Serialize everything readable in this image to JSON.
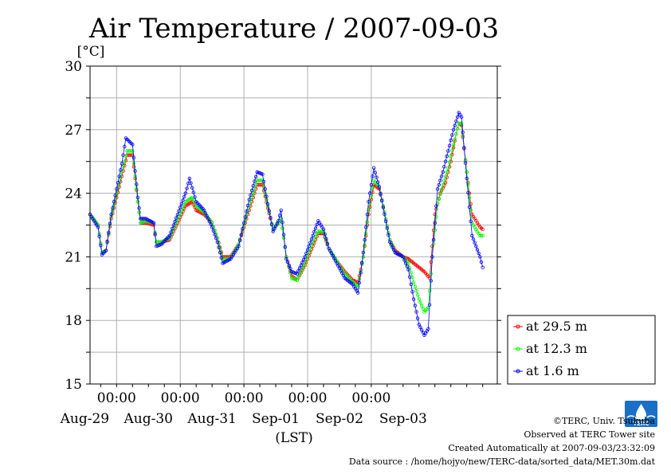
{
  "chart_data": {
    "type": "line",
    "title": "Air Temperature / 2007-09-03",
    "ylabel": "[°C]",
    "xlabel": "(LST)",
    "ylim": [
      15,
      30
    ],
    "yticks": [
      15,
      18,
      21,
      24,
      27,
      30
    ],
    "x_range_days": [
      "2007-08-28 14:00",
      "2007-09-03 23:30"
    ],
    "x_time_ticks": [
      "00:00",
      "00:00",
      "00:00",
      "00:00",
      "00:00"
    ],
    "x_date_labels": [
      "Aug-29",
      "Aug-30",
      "Aug-31",
      "Sep-01",
      "Sep-02",
      "Sep-03"
    ],
    "grid": true,
    "legend_position": "right",
    "marker": "open-circle",
    "series": [
      {
        "name": "at 29.5 m",
        "color": "#ff0000",
        "points": [
          [
            "2007-08-28 14:00",
            23.0
          ],
          [
            "2007-08-28 17:00",
            22.5
          ],
          [
            "2007-08-28 18:30",
            21.2
          ],
          [
            "2007-08-28 20:00",
            21.3
          ],
          [
            "2007-08-28 22:00",
            22.8
          ],
          [
            "2007-08-29 02:00",
            24.8
          ],
          [
            "2007-08-29 04:00",
            25.8
          ],
          [
            "2007-08-29 06:00",
            25.8
          ],
          [
            "2007-08-29 08:00",
            23.6
          ],
          [
            "2007-08-29 09:00",
            22.6
          ],
          [
            "2007-08-29 11:00",
            22.6
          ],
          [
            "2007-08-29 14:00",
            22.5
          ],
          [
            "2007-08-29 15:00",
            21.7
          ],
          [
            "2007-08-29 17:00",
            21.7
          ],
          [
            "2007-08-29 20:00",
            21.8
          ],
          [
            "2007-08-30 02:00",
            23.4
          ],
          [
            "2007-08-30 04:30",
            23.6
          ],
          [
            "2007-08-30 06:00",
            23.2
          ],
          [
            "2007-08-30 09:00",
            23.0
          ],
          [
            "2007-08-30 12:00",
            22.6
          ],
          [
            "2007-08-30 14:00",
            21.9
          ],
          [
            "2007-08-30 16:00",
            21.0
          ],
          [
            "2007-08-30 19:00",
            21.0
          ],
          [
            "2007-08-30 22:00",
            21.6
          ],
          [
            "2007-08-31 02:00",
            23.2
          ],
          [
            "2007-08-31 05:00",
            24.4
          ],
          [
            "2007-08-31 07:00",
            24.4
          ],
          [
            "2007-08-31 09:00",
            23.3
          ],
          [
            "2007-08-31 11:00",
            22.3
          ],
          [
            "2007-08-31 13:00",
            22.6
          ],
          [
            "2007-08-31 14:00",
            22.8
          ],
          [
            "2007-08-31 16:00",
            21.0
          ],
          [
            "2007-08-31 18:00",
            20.1
          ],
          [
            "2007-08-31 20:00",
            19.9
          ],
          [
            "2007-08-31 23:00",
            20.6
          ],
          [
            "2007-09-01 02:00",
            21.5
          ],
          [
            "2007-09-01 04:00",
            22.1
          ],
          [
            "2007-09-01 06:00",
            22.1
          ],
          [
            "2007-09-01 08:00",
            21.4
          ],
          [
            "2007-09-01 11:00",
            20.8
          ],
          [
            "2007-09-01 14:00",
            20.3
          ],
          [
            "2007-09-01 17:00",
            19.9
          ],
          [
            "2007-09-01 19:00",
            19.8
          ],
          [
            "2007-09-01 21:00",
            21.0
          ],
          [
            "2007-09-01 23:00",
            23.0
          ],
          [
            "2007-09-02 01:00",
            24.4
          ],
          [
            "2007-09-02 03:00",
            24.2
          ],
          [
            "2007-09-02 05:00",
            23.1
          ],
          [
            "2007-09-02 07:00",
            21.8
          ],
          [
            "2007-09-02 09:00",
            21.3
          ],
          [
            "2007-09-02 12:00",
            21.0
          ],
          [
            "2007-09-02 14:00",
            20.9
          ],
          [
            "2007-09-02 17:00",
            20.6
          ],
          [
            "2007-09-02 20:00",
            20.3
          ],
          [
            "2007-09-02 22:00",
            20.0
          ],
          [
            "2007-09-03 00:00",
            23.0
          ],
          [
            "2007-09-03 02:00",
            24.0
          ],
          [
            "2007-09-03 04:00",
            24.5
          ],
          [
            "2007-09-03 06:00",
            25.5
          ],
          [
            "2007-09-03 08:00",
            26.8
          ],
          [
            "2007-09-03 09:00",
            27.3
          ],
          [
            "2007-09-03 10:00",
            27.2
          ],
          [
            "2007-09-03 12:00",
            25.0
          ],
          [
            "2007-09-03 14:00",
            23.0
          ],
          [
            "2007-09-03 17:00",
            22.4
          ],
          [
            "2007-09-03 18:00",
            22.3
          ]
        ]
      },
      {
        "name": "at 12.3 m",
        "color": "#00ff00",
        "points": [
          [
            "2007-08-28 14:00",
            23.0
          ],
          [
            "2007-08-28 17:00",
            22.5
          ],
          [
            "2007-08-28 18:30",
            21.2
          ],
          [
            "2007-08-28 20:00",
            21.3
          ],
          [
            "2007-08-28 22:00",
            22.9
          ],
          [
            "2007-08-29 02:00",
            25.0
          ],
          [
            "2007-08-29 04:00",
            26.0
          ],
          [
            "2007-08-29 06:00",
            26.0
          ],
          [
            "2007-08-29 08:00",
            23.6
          ],
          [
            "2007-08-29 09:00",
            22.6
          ],
          [
            "2007-08-29 11:00",
            22.7
          ],
          [
            "2007-08-29 14:00",
            22.6
          ],
          [
            "2007-08-29 15:00",
            21.7
          ],
          [
            "2007-08-29 17:00",
            21.7
          ],
          [
            "2007-08-29 20:00",
            21.9
          ],
          [
            "2007-08-30 02:00",
            23.6
          ],
          [
            "2007-08-30 04:30",
            23.8
          ],
          [
            "2007-08-30 06:00",
            23.4
          ],
          [
            "2007-08-30 09:00",
            23.1
          ],
          [
            "2007-08-30 12:00",
            22.6
          ],
          [
            "2007-08-30 14:00",
            21.9
          ],
          [
            "2007-08-30 16:00",
            20.9
          ],
          [
            "2007-08-30 19:00",
            20.9
          ],
          [
            "2007-08-30 22:00",
            21.6
          ],
          [
            "2007-08-31 02:00",
            23.4
          ],
          [
            "2007-08-31 05:00",
            24.6
          ],
          [
            "2007-08-31 07:00",
            24.6
          ],
          [
            "2007-08-31 09:00",
            23.4
          ],
          [
            "2007-08-31 11:00",
            22.3
          ],
          [
            "2007-08-31 13:00",
            22.6
          ],
          [
            "2007-08-31 14:00",
            22.8
          ],
          [
            "2007-08-31 16:00",
            21.0
          ],
          [
            "2007-08-31 18:00",
            20.0
          ],
          [
            "2007-08-31 20:00",
            19.9
          ],
          [
            "2007-08-31 23:00",
            20.7
          ],
          [
            "2007-09-01 02:00",
            21.7
          ],
          [
            "2007-09-01 04:00",
            22.2
          ],
          [
            "2007-09-01 06:00",
            22.2
          ],
          [
            "2007-09-01 08:00",
            21.4
          ],
          [
            "2007-09-01 11:00",
            20.8
          ],
          [
            "2007-09-01 14:00",
            20.2
          ],
          [
            "2007-09-01 17:00",
            19.8
          ],
          [
            "2007-09-01 19:00",
            19.6
          ],
          [
            "2007-09-01 21:00",
            21.0
          ],
          [
            "2007-09-01 23:00",
            23.2
          ],
          [
            "2007-09-02 01:00",
            24.6
          ],
          [
            "2007-09-02 03:00",
            24.3
          ],
          [
            "2007-09-02 05:00",
            23.1
          ],
          [
            "2007-09-02 07:00",
            21.8
          ],
          [
            "2007-09-02 09:00",
            21.2
          ],
          [
            "2007-09-02 12:00",
            21.0
          ],
          [
            "2007-09-02 14:00",
            20.7
          ],
          [
            "2007-09-02 16:00",
            19.8
          ],
          [
            "2007-09-02 18:00",
            19.0
          ],
          [
            "2007-09-02 20:00",
            18.4
          ],
          [
            "2007-09-02 21:30",
            18.6
          ],
          [
            "2007-09-02 23:00",
            21.0
          ],
          [
            "2007-09-03 01:00",
            23.5
          ],
          [
            "2007-09-03 03:00",
            24.4
          ],
          [
            "2007-09-03 05:00",
            25.2
          ],
          [
            "2007-09-03 07:00",
            26.3
          ],
          [
            "2007-09-03 09:00",
            27.3
          ],
          [
            "2007-09-03 10:00",
            27.3
          ],
          [
            "2007-09-03 12:00",
            25.0
          ],
          [
            "2007-09-03 14:00",
            22.6
          ],
          [
            "2007-09-03 17:00",
            22.0
          ],
          [
            "2007-09-03 18:00",
            22.0
          ]
        ]
      },
      {
        "name": "at 1.6 m",
        "color": "#0000ff",
        "points": [
          [
            "2007-08-28 14:00",
            23.0
          ],
          [
            "2007-08-28 17:00",
            22.4
          ],
          [
            "2007-08-28 18:30",
            21.1
          ],
          [
            "2007-08-28 20:00",
            21.3
          ],
          [
            "2007-08-28 22:00",
            23.0
          ],
          [
            "2007-08-29 02:00",
            25.4
          ],
          [
            "2007-08-29 03:30",
            26.6
          ],
          [
            "2007-08-29 06:00",
            26.3
          ],
          [
            "2007-08-29 08:00",
            23.8
          ],
          [
            "2007-08-29 09:00",
            22.8
          ],
          [
            "2007-08-29 11:00",
            22.8
          ],
          [
            "2007-08-29 14:00",
            22.6
          ],
          [
            "2007-08-29 15:00",
            21.5
          ],
          [
            "2007-08-29 17:00",
            21.6
          ],
          [
            "2007-08-29 20:00",
            22.0
          ],
          [
            "2007-08-30 02:00",
            24.0
          ],
          [
            "2007-08-30 03:30",
            24.7
          ],
          [
            "2007-08-30 06:00",
            23.6
          ],
          [
            "2007-08-30 09:00",
            23.2
          ],
          [
            "2007-08-30 12:00",
            22.4
          ],
          [
            "2007-08-30 14:00",
            21.7
          ],
          [
            "2007-08-30 16:00",
            20.7
          ],
          [
            "2007-08-30 19:00",
            20.9
          ],
          [
            "2007-08-30 22:00",
            21.5
          ],
          [
            "2007-08-31 02:00",
            23.7
          ],
          [
            "2007-08-31 05:00",
            25.0
          ],
          [
            "2007-08-31 07:00",
            24.9
          ],
          [
            "2007-08-31 09:00",
            23.5
          ],
          [
            "2007-08-31 11:00",
            22.2
          ],
          [
            "2007-08-31 13:00",
            22.7
          ],
          [
            "2007-08-31 14:00",
            23.2
          ],
          [
            "2007-08-31 16:00",
            20.9
          ],
          [
            "2007-08-31 18:00",
            20.3
          ],
          [
            "2007-08-31 20:00",
            20.2
          ],
          [
            "2007-08-31 23:00",
            21.0
          ],
          [
            "2007-09-01 02:00",
            22.0
          ],
          [
            "2007-09-01 04:00",
            22.7
          ],
          [
            "2007-09-01 06:00",
            22.3
          ],
          [
            "2007-09-01 08:00",
            21.4
          ],
          [
            "2007-09-01 11:00",
            20.7
          ],
          [
            "2007-09-01 14:00",
            20.0
          ],
          [
            "2007-09-01 17:00",
            19.7
          ],
          [
            "2007-09-01 19:00",
            19.3
          ],
          [
            "2007-09-01 21:00",
            21.2
          ],
          [
            "2007-09-01 23:00",
            23.6
          ],
          [
            "2007-09-02 01:00",
            25.2
          ],
          [
            "2007-09-02 03:00",
            24.3
          ],
          [
            "2007-09-02 05:00",
            23.0
          ],
          [
            "2007-09-02 07:00",
            21.7
          ],
          [
            "2007-09-02 09:00",
            21.2
          ],
          [
            "2007-09-02 12:00",
            21.0
          ],
          [
            "2007-09-02 14:00",
            20.4
          ],
          [
            "2007-09-02 16:00",
            19.0
          ],
          [
            "2007-09-02 18:00",
            17.8
          ],
          [
            "2007-09-02 20:00",
            17.3
          ],
          [
            "2007-09-02 21:30",
            17.6
          ],
          [
            "2007-09-02 23:00",
            21.0
          ],
          [
            "2007-09-03 01:00",
            24.2
          ],
          [
            "2007-09-03 03:00",
            25.0
          ],
          [
            "2007-09-03 05:00",
            26.0
          ],
          [
            "2007-09-03 07:00",
            27.0
          ],
          [
            "2007-09-03 09:00",
            27.8
          ],
          [
            "2007-09-03 10:00",
            27.6
          ],
          [
            "2007-09-03 12:00",
            24.7
          ],
          [
            "2007-09-03 14:00",
            22.0
          ],
          [
            "2007-09-03 17:00",
            21.0
          ],
          [
            "2007-09-03 18:00",
            20.5
          ]
        ]
      }
    ]
  },
  "footer": {
    "copyright": "©TERC, Univ. Tsukuba",
    "site": "Observed at TERC Tower site",
    "created": "Created Automatically at 2007-09-03/23:32:09",
    "source": "Data source : /home/hojyo/new/TERC-data/sorted_data/MET.30m.dat"
  },
  "logo": {
    "text": "TERC",
    "color": "#1a6fc8"
  }
}
